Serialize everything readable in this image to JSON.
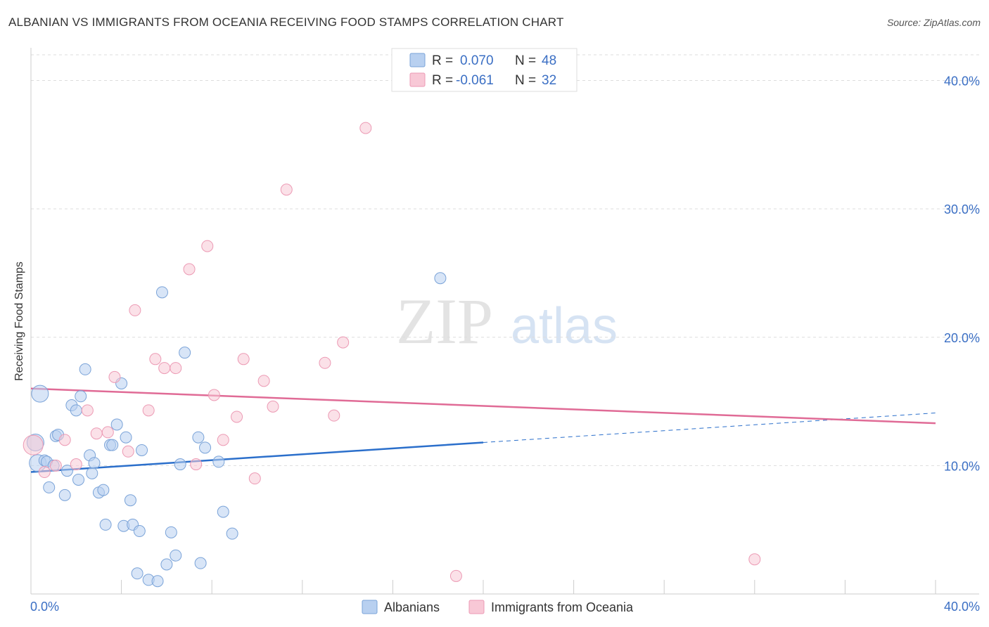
{
  "header": {
    "title": "ALBANIAN VS IMMIGRANTS FROM OCEANIA RECEIVING FOOD STAMPS CORRELATION CHART",
    "source": "Source: ZipAtlas.com"
  },
  "watermark": {
    "zip": "ZIP",
    "atlas": "atlas"
  },
  "legend_box": {
    "rows": [
      {
        "r_label": "R =",
        "r_value": "0.070",
        "n_label": "N =",
        "n_value": "48"
      },
      {
        "r_label": "R =",
        "r_value": "-0.061",
        "n_label": "N =",
        "n_value": "32"
      }
    ]
  },
  "bottom_legend": {
    "items": [
      {
        "label": "Albanians"
      },
      {
        "label": "Immigrants from Oceania"
      }
    ]
  },
  "colors": {
    "blue_fill": "#b8d0f0",
    "blue_stroke": "#7aa3d8",
    "blue_line": "#2b6fcb",
    "pink_fill": "#f8c8d6",
    "pink_stroke": "#ec9ab4",
    "pink_line": "#e06b96",
    "axis_text": "#3b6fc4",
    "grid": "#dddddd"
  },
  "chart_data": {
    "type": "scatter",
    "title": "ALBANIAN VS IMMIGRANTS FROM OCEANIA RECEIVING FOOD STAMPS CORRELATION CHART",
    "xlabel": "",
    "ylabel": "Receiving Food Stamps",
    "xlim": [
      0,
      40
    ],
    "ylim": [
      0,
      42
    ],
    "x_tick_labels": [
      "0.0%",
      "40.0%"
    ],
    "y_ticks": [
      10,
      20,
      30,
      40
    ],
    "y_tick_labels": [
      "10.0%",
      "20.0%",
      "30.0%",
      "40.0%"
    ],
    "series": [
      {
        "name": "Albanians",
        "r": 0.07,
        "n": 48,
        "trend": {
          "x0": 0,
          "y0": 9.5,
          "x1": 20,
          "y1": 11.8,
          "dash_to_x": 40,
          "dash_to_y": 14.1
        },
        "points": [
          [
            0.2,
            11.8
          ],
          [
            0.3,
            10.2
          ],
          [
            0.4,
            15.6
          ],
          [
            0.6,
            10.4
          ],
          [
            0.7,
            10.3
          ],
          [
            0.8,
            8.3
          ],
          [
            1.0,
            10.0
          ],
          [
            1.1,
            12.3
          ],
          [
            1.2,
            12.4
          ],
          [
            1.5,
            7.7
          ],
          [
            1.6,
            9.6
          ],
          [
            1.8,
            14.7
          ],
          [
            2.0,
            14.3
          ],
          [
            2.1,
            8.9
          ],
          [
            2.2,
            15.4
          ],
          [
            2.4,
            17.5
          ],
          [
            2.6,
            10.8
          ],
          [
            2.7,
            9.4
          ],
          [
            2.8,
            10.2
          ],
          [
            3.0,
            7.9
          ],
          [
            3.2,
            8.1
          ],
          [
            3.3,
            5.4
          ],
          [
            3.5,
            11.6
          ],
          [
            3.6,
            11.6
          ],
          [
            3.8,
            13.2
          ],
          [
            4.0,
            16.4
          ],
          [
            4.1,
            5.3
          ],
          [
            4.2,
            12.2
          ],
          [
            4.4,
            7.3
          ],
          [
            4.5,
            5.4
          ],
          [
            4.7,
            1.6
          ],
          [
            4.8,
            4.9
          ],
          [
            4.9,
            11.2
          ],
          [
            5.2,
            1.1
          ],
          [
            5.6,
            1.0
          ],
          [
            5.8,
            23.5
          ],
          [
            6.0,
            2.3
          ],
          [
            6.2,
            4.8
          ],
          [
            6.4,
            3.0
          ],
          [
            6.6,
            10.1
          ],
          [
            6.8,
            18.8
          ],
          [
            7.4,
            12.2
          ],
          [
            7.5,
            2.4
          ],
          [
            7.7,
            11.4
          ],
          [
            8.3,
            10.3
          ],
          [
            8.5,
            6.4
          ],
          [
            8.9,
            4.7
          ],
          [
            18.1,
            24.6
          ]
        ]
      },
      {
        "name": "Immigrants from Oceania",
        "r": -0.061,
        "n": 32,
        "trend": {
          "x0": 0,
          "y0": 16.0,
          "x1": 40,
          "y1": 13.3
        },
        "points": [
          [
            0.1,
            11.6
          ],
          [
            0.6,
            9.5
          ],
          [
            1.1,
            10.0
          ],
          [
            1.5,
            12.0
          ],
          [
            2.0,
            10.1
          ],
          [
            2.5,
            14.3
          ],
          [
            2.9,
            12.5
          ],
          [
            3.4,
            12.6
          ],
          [
            3.7,
            16.9
          ],
          [
            4.3,
            11.1
          ],
          [
            4.6,
            22.1
          ],
          [
            5.2,
            14.3
          ],
          [
            5.5,
            18.3
          ],
          [
            5.9,
            17.6
          ],
          [
            6.4,
            17.6
          ],
          [
            7.0,
            25.3
          ],
          [
            7.3,
            10.1
          ],
          [
            7.8,
            27.1
          ],
          [
            8.1,
            15.5
          ],
          [
            8.5,
            12.0
          ],
          [
            9.1,
            13.8
          ],
          [
            9.4,
            18.3
          ],
          [
            9.9,
            9.0
          ],
          [
            10.3,
            16.6
          ],
          [
            10.7,
            14.6
          ],
          [
            11.3,
            31.5
          ],
          [
            13.0,
            18.0
          ],
          [
            13.4,
            13.9
          ],
          [
            13.8,
            19.6
          ],
          [
            14.8,
            36.3
          ],
          [
            18.8,
            1.4
          ],
          [
            32.0,
            2.7
          ]
        ]
      }
    ]
  }
}
